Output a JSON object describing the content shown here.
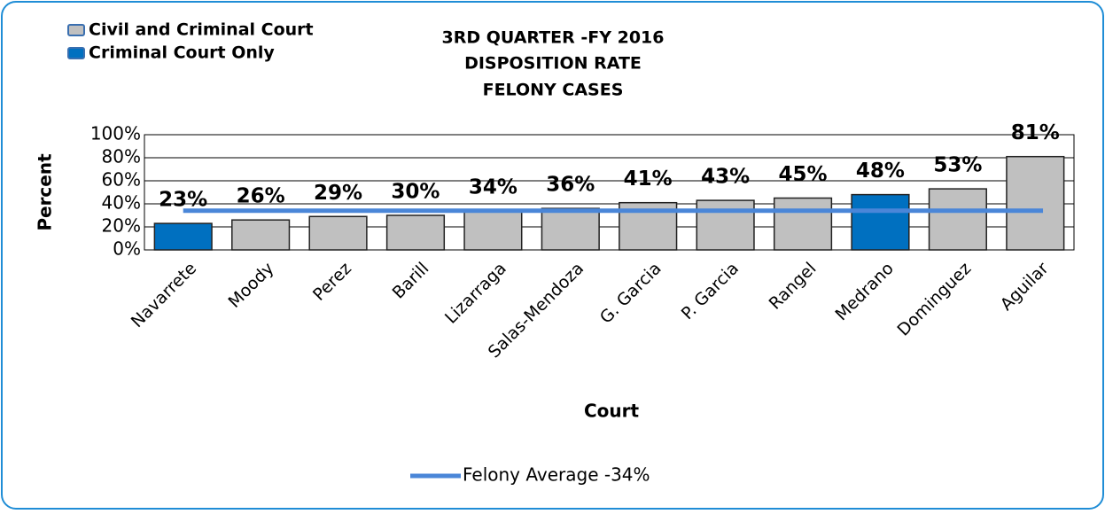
{
  "chart_data": {
    "type": "bar",
    "title": [
      "3RD QUARTER -FY 2016",
      "DISPOSITION RATE",
      "FELONY CASES"
    ],
    "y_label": "Percent",
    "x_label": "Court",
    "categories": [
      "Navarrete",
      "Moody",
      "Perez",
      "Barill",
      "Lizarraga",
      "Salas-Mendoza",
      "G. Garcia",
      "P. Garcia",
      "Rangel",
      "Medrano",
      "Dominguez",
      "Aguilar"
    ],
    "series": [
      {
        "name": "Civil and Criminal Court",
        "color": "#c0c0c0",
        "values": [
          null,
          26,
          29,
          30,
          34,
          36,
          41,
          43,
          45,
          null,
          53,
          81
        ],
        "value_labels": [
          null,
          "26%",
          "29%",
          "30%",
          "34%",
          "36%",
          "41%",
          "43%",
          "45%",
          null,
          "53%",
          "81%"
        ]
      },
      {
        "name": "Criminal Court Only",
        "color": "#0070c0",
        "values": [
          23,
          null,
          null,
          null,
          null,
          null,
          null,
          null,
          null,
          48,
          null,
          null
        ],
        "value_labels": [
          "23%",
          null,
          null,
          null,
          null,
          null,
          null,
          null,
          null,
          "48%",
          null,
          null
        ]
      }
    ],
    "average": {
      "name": "Felony Average -34%",
      "value": 34,
      "color": "#4a86d8"
    },
    "ylim": [
      0,
      100
    ],
    "yticks": [
      {
        "value": 0,
        "label": "0%"
      },
      {
        "value": 20,
        "label": "20%"
      },
      {
        "value": 40,
        "label": "40%"
      },
      {
        "value": 60,
        "label": "60%"
      },
      {
        "value": 80,
        "label": "80%"
      },
      {
        "value": 100,
        "label": "100%"
      }
    ],
    "grid": true
  }
}
